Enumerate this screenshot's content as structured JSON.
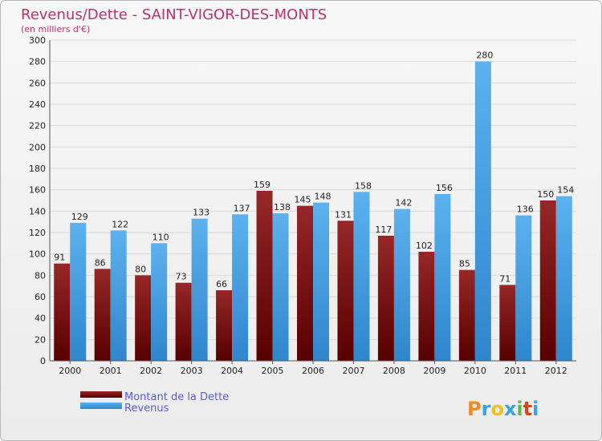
{
  "chart_data": {
    "type": "bar",
    "title": "Revenus/Dette - SAINT-VIGOR-DES-MONTS",
    "subtitle": "(en milliers d'€)",
    "categories": [
      "2000",
      "2001",
      "2002",
      "2003",
      "2004",
      "2005",
      "2006",
      "2007",
      "2008",
      "2009",
      "2010",
      "2011",
      "2012"
    ],
    "series": [
      {
        "name": "Montant de la Dette",
        "color": "#6b0a0a",
        "values": [
          91,
          86,
          80,
          73,
          66,
          159,
          145,
          131,
          117,
          102,
          85,
          71,
          150
        ]
      },
      {
        "name": "Revenus",
        "color": "#4aa3e6",
        "values": [
          129,
          122,
          110,
          133,
          137,
          138,
          148,
          158,
          142,
          156,
          280,
          136,
          154
        ]
      }
    ],
    "ylim": [
      0,
      300
    ],
    "yticks": [
      "0",
      "20",
      "40",
      "60",
      "80",
      "100",
      "120",
      "140",
      "160",
      "180",
      "200",
      "220",
      "240",
      "260",
      "280",
      "300"
    ],
    "grid": true,
    "legend_position": "bottom-left"
  },
  "logo": {
    "letters": [
      "P",
      "r",
      "o",
      "x",
      "i",
      "t",
      "i"
    ],
    "colors": [
      "#f08c1e",
      "#3aa0e0",
      "#f0c01e",
      "#3aa0e0",
      "#5cb84a",
      "#e0401e",
      "#3aa0e0"
    ]
  }
}
